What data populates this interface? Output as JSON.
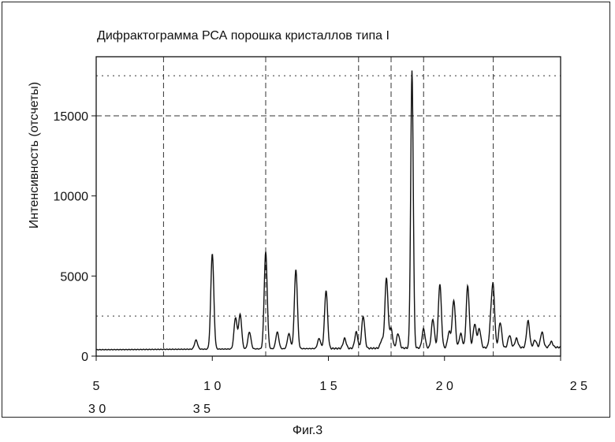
{
  "figure": {
    "caption": "Фиг.3"
  },
  "chart_data": {
    "type": "line",
    "title": "Дифрактограмма РСА порошка кристаллов типа I",
    "xlabel": "",
    "ylabel": "Интенсивность (отсчеты)",
    "xlim": [
      5,
      25
    ],
    "ylim": [
      0,
      18000
    ],
    "grid": true,
    "legend": "none",
    "x_ticks_row1": [
      {
        "value": 5,
        "label": "5"
      },
      {
        "value": 10,
        "label": "1 0"
      },
      {
        "value": 15,
        "label": "1 5"
      },
      {
        "value": 20,
        "label": "2 0"
      },
      {
        "value": 25,
        "label": "2 5"
      }
    ],
    "x_ticks_row2": [
      {
        "value": 5,
        "label": "3 0"
      },
      {
        "value": 9,
        "label": "3 5"
      }
    ],
    "y_ticks": [
      {
        "value": 0,
        "label": "0"
      },
      {
        "value": 5000,
        "label": "5000"
      },
      {
        "value": 10000,
        "label": "10000"
      },
      {
        "value": 15000,
        "label": "15000"
      }
    ],
    "grid_x": [
      7.9,
      12.3,
      16.3,
      17.7,
      19.1,
      22.1
    ],
    "grid_y": [
      2500,
      15000,
      17500
    ],
    "baseline": 400,
    "series": [
      {
        "name": "",
        "peaks": [
          {
            "x": 9.3,
            "y": 1000
          },
          {
            "x": 10.0,
            "y": 6400
          },
          {
            "x": 11.0,
            "y": 2400
          },
          {
            "x": 11.2,
            "y": 2600
          },
          {
            "x": 11.6,
            "y": 1500
          },
          {
            "x": 12.3,
            "y": 6500
          },
          {
            "x": 12.8,
            "y": 1500
          },
          {
            "x": 13.3,
            "y": 1400
          },
          {
            "x": 13.6,
            "y": 5400
          },
          {
            "x": 14.6,
            "y": 1100
          },
          {
            "x": 14.9,
            "y": 4100
          },
          {
            "x": 15.7,
            "y": 1100
          },
          {
            "x": 16.2,
            "y": 1500
          },
          {
            "x": 16.5,
            "y": 2500
          },
          {
            "x": 17.3,
            "y": 1000
          },
          {
            "x": 17.5,
            "y": 4900
          },
          {
            "x": 17.7,
            "y": 1700
          },
          {
            "x": 18.0,
            "y": 1400
          },
          {
            "x": 18.6,
            "y": 17800
          },
          {
            "x": 19.1,
            "y": 1700
          },
          {
            "x": 19.5,
            "y": 2300
          },
          {
            "x": 19.8,
            "y": 4500
          },
          {
            "x": 20.2,
            "y": 1500
          },
          {
            "x": 20.4,
            "y": 3500
          },
          {
            "x": 20.7,
            "y": 1400
          },
          {
            "x": 21.0,
            "y": 4400
          },
          {
            "x": 21.3,
            "y": 2000
          },
          {
            "x": 21.5,
            "y": 1700
          },
          {
            "x": 22.0,
            "y": 2000
          },
          {
            "x": 22.1,
            "y": 4000
          },
          {
            "x": 22.4,
            "y": 2100
          },
          {
            "x": 22.8,
            "y": 1300
          },
          {
            "x": 23.1,
            "y": 1100
          },
          {
            "x": 23.6,
            "y": 2200
          },
          {
            "x": 23.9,
            "y": 1000
          },
          {
            "x": 24.2,
            "y": 1500
          },
          {
            "x": 24.6,
            "y": 900
          }
        ]
      }
    ]
  }
}
